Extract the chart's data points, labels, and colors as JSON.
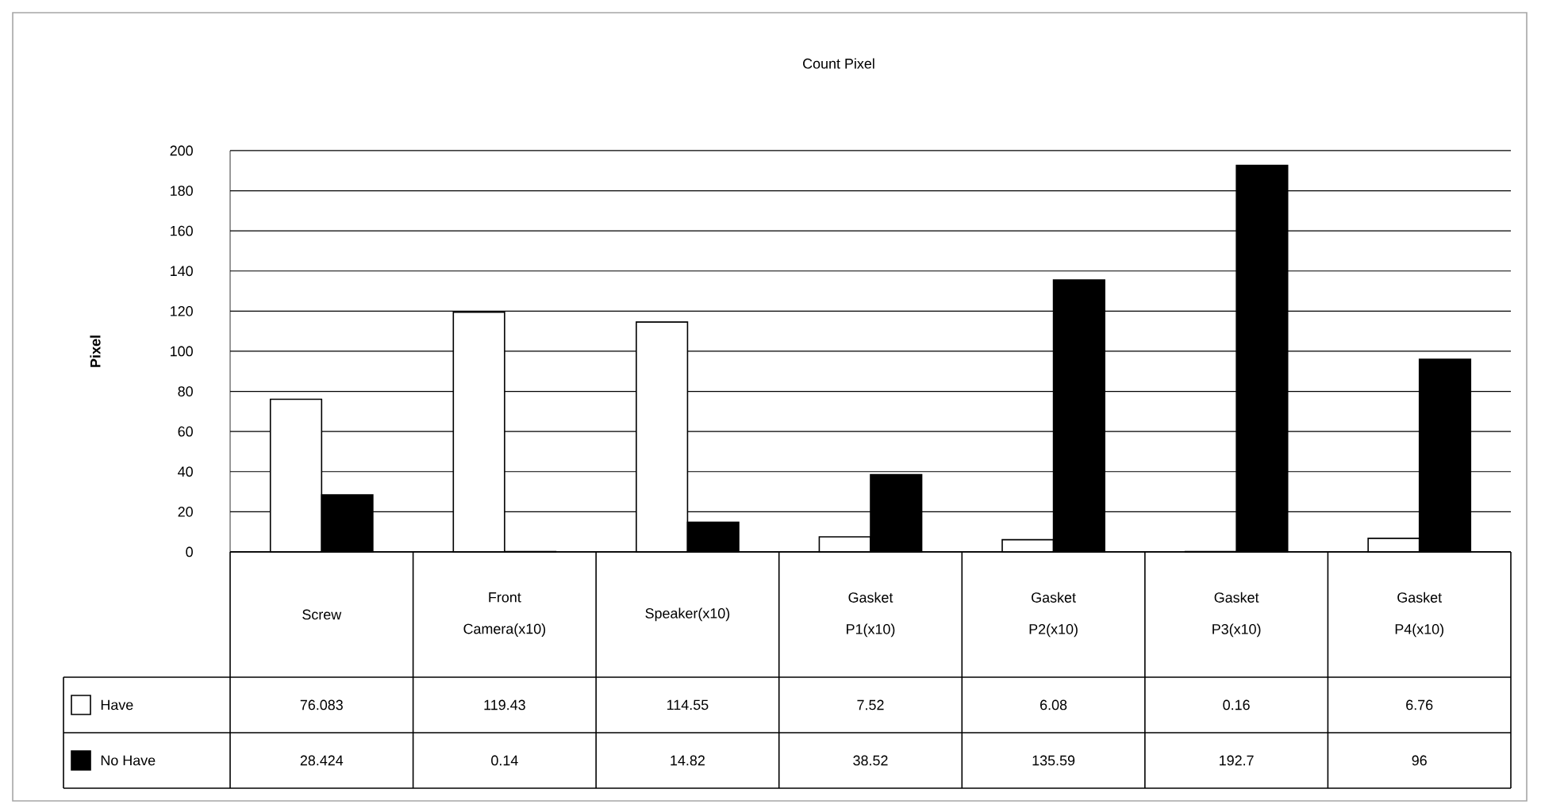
{
  "chart_data": {
    "type": "bar",
    "title": "Count Pixel",
    "ylabel": "Pixel",
    "categories": [
      "Screw",
      "Front Camera(x10)",
      "Speaker(x10)",
      "Gasket P1(x10)",
      "Gasket P2(x10)",
      "Gasket P3(x10)",
      "Gasket P4(x10)"
    ],
    "series": [
      {
        "name": "Have",
        "color": "#ffffff",
        "values": [
          76.083,
          119.43,
          114.55,
          7.52,
          6.08,
          0.16,
          6.76
        ]
      },
      {
        "name": "No Have",
        "color": "#000000",
        "values": [
          28.424,
          0.14,
          14.82,
          38.52,
          135.59,
          192.7,
          96
        ]
      }
    ],
    "ylim": [
      0,
      200
    ],
    "yticks": [
      0,
      20,
      40,
      60,
      80,
      100,
      120,
      140,
      160,
      180,
      200
    ],
    "grid": "y",
    "legend": "bottom",
    "data_labels": true
  }
}
